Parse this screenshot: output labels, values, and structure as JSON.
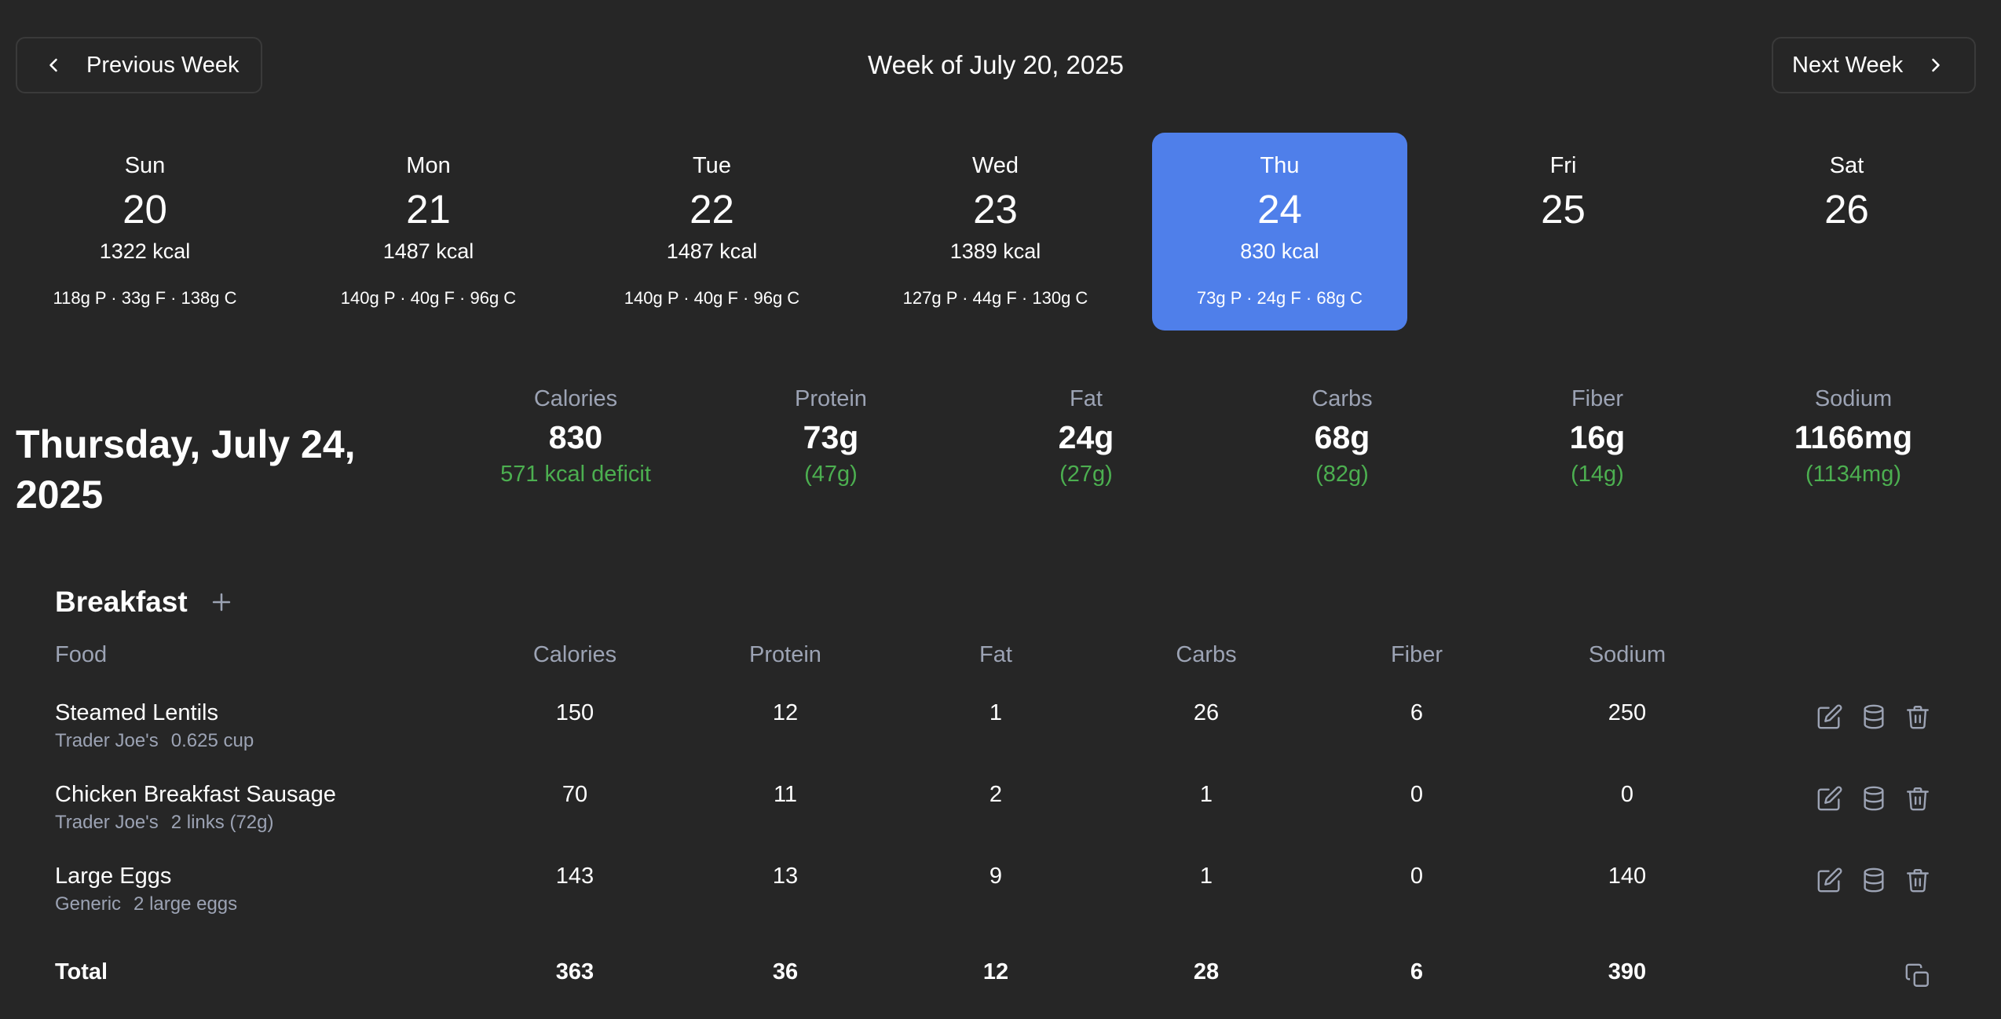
{
  "week_nav": {
    "prev_label": "Previous Week",
    "title": "Week of July 20, 2025",
    "next_label": "Next Week"
  },
  "days": [
    {
      "name": "Sun",
      "num": "20",
      "kcal": "1322 kcal",
      "macros": "118g P · 33g F · 138g C"
    },
    {
      "name": "Mon",
      "num": "21",
      "kcal": "1487 kcal",
      "macros": "140g P · 40g F · 96g C"
    },
    {
      "name": "Tue",
      "num": "22",
      "kcal": "1487 kcal",
      "macros": "140g P · 40g F · 96g C"
    },
    {
      "name": "Wed",
      "num": "23",
      "kcal": "1389 kcal",
      "macros": "127g P · 44g F · 130g C"
    },
    {
      "name": "Thu",
      "num": "24",
      "kcal": "830 kcal",
      "macros": "73g P · 24g F · 68g C",
      "selected": true
    },
    {
      "name": "Fri",
      "num": "25",
      "kcal": "",
      "macros": ""
    },
    {
      "name": "Sat",
      "num": "26",
      "kcal": "",
      "macros": ""
    }
  ],
  "selected_date": "Thursday, July 24, 2025",
  "summary": [
    {
      "label": "Calories",
      "value": "830",
      "delta": "571 kcal deficit"
    },
    {
      "label": "Protein",
      "value": "73g",
      "delta": "(47g)"
    },
    {
      "label": "Fat",
      "value": "24g",
      "delta": "(27g)"
    },
    {
      "label": "Carbs",
      "value": "68g",
      "delta": "(82g)"
    },
    {
      "label": "Fiber",
      "value": "16g",
      "delta": "(14g)"
    },
    {
      "label": "Sodium",
      "value": "1166mg",
      "delta": "(1134mg)"
    }
  ],
  "summary_delta_color": "#4caf50",
  "accent_color": "#4f7fea",
  "meal": {
    "title": "Breakfast",
    "columns": [
      "Food",
      "Calories",
      "Protein",
      "Fat",
      "Carbs",
      "Fiber",
      "Sodium"
    ],
    "rows": [
      {
        "name": "Steamed Lentils",
        "brand": "Trader Joe's",
        "serving": "0.625 cup",
        "values": [
          "150",
          "12",
          "1",
          "26",
          "6",
          "250"
        ]
      },
      {
        "name": "Chicken Breakfast Sausage",
        "brand": "Trader Joe's",
        "serving": "2 links (72g)",
        "values": [
          "70",
          "11",
          "2",
          "1",
          "0",
          "0"
        ]
      },
      {
        "name": "Large Eggs",
        "brand": "Generic",
        "serving": "2 large eggs",
        "values": [
          "143",
          "13",
          "9",
          "1",
          "0",
          "140"
        ]
      }
    ],
    "total_label": "Total",
    "totals": [
      "363",
      "36",
      "12",
      "28",
      "6",
      "390"
    ]
  },
  "icons": {
    "prev": "chevron-left-icon",
    "next": "chevron-right-icon",
    "add": "plus-icon",
    "edit": "edit-icon",
    "database": "database-icon",
    "delete": "trash-icon",
    "copy": "copy-icon"
  }
}
